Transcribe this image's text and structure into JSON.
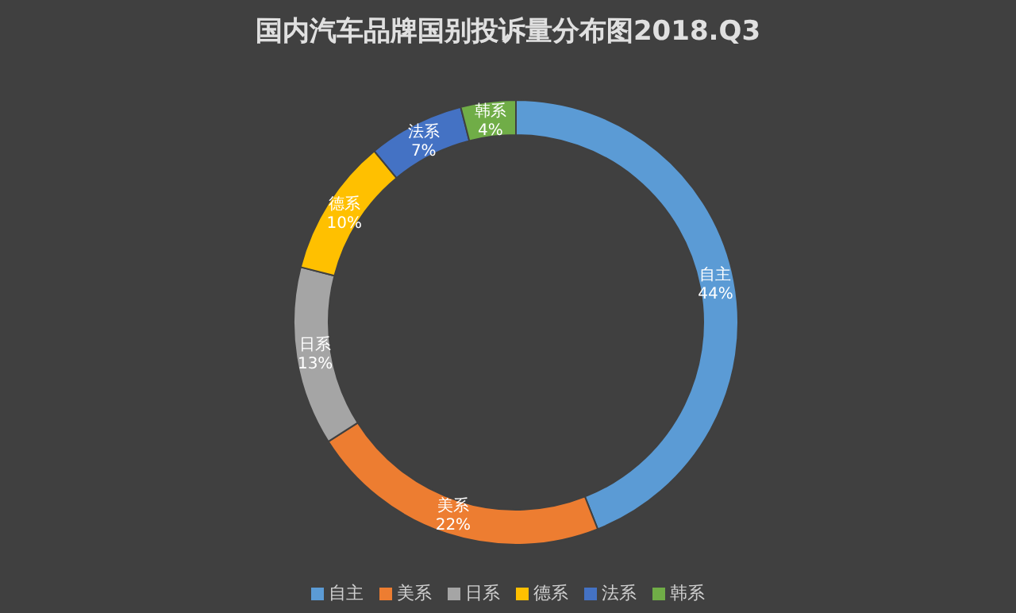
{
  "chart_data": {
    "type": "donut",
    "title": "国内汽车品牌国别投诉量分布图2018.Q3",
    "categories": [
      "自主",
      "美系",
      "日系",
      "德系",
      "法系",
      "韩系"
    ],
    "values": [
      44,
      22,
      13,
      10,
      7,
      4
    ],
    "value_labels": [
      "44%",
      "22%",
      "13%",
      "10%",
      "7%",
      "4%"
    ],
    "colors": [
      "#5b9bd5",
      "#ed7d31",
      "#a5a5a5",
      "#ffc000",
      "#4472c4",
      "#70ad47"
    ],
    "legend": "bottom"
  }
}
